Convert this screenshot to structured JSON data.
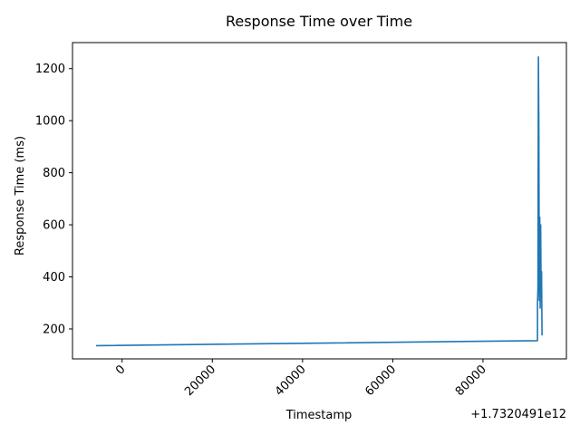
{
  "chart_data": {
    "type": "line",
    "title": "Response Time over Time",
    "xlabel": "Timestamp",
    "ylabel": "Response Time (ms)",
    "x_offset_label": "+1.7320491e12",
    "xlim": [
      -11000,
      98500
    ],
    "ylim": [
      85,
      1300
    ],
    "x_ticks": [
      {
        "value": 0,
        "label": "0"
      },
      {
        "value": 20000,
        "label": "20000"
      },
      {
        "value": 40000,
        "label": "40000"
      },
      {
        "value": 60000,
        "label": "60000"
      },
      {
        "value": 80000,
        "label": "80000"
      }
    ],
    "y_ticks": [
      {
        "value": 200,
        "label": "200"
      },
      {
        "value": 400,
        "label": "400"
      },
      {
        "value": 600,
        "label": "600"
      },
      {
        "value": 800,
        "label": "800"
      },
      {
        "value": 1000,
        "label": "1000"
      },
      {
        "value": 1200,
        "label": "1200"
      }
    ],
    "grid": false,
    "legend": "none",
    "series": [
      {
        "color": "#1f77b4",
        "x": [
          -5800,
          92100,
          92100,
          92200,
          92300,
          92400,
          92500,
          92600,
          92700,
          92800,
          92900,
          93000,
          93100
        ],
        "y": [
          136,
          155,
          300,
          355,
          1245,
          970,
          310,
          630,
          280,
          600,
          330,
          420,
          175
        ]
      }
    ]
  }
}
